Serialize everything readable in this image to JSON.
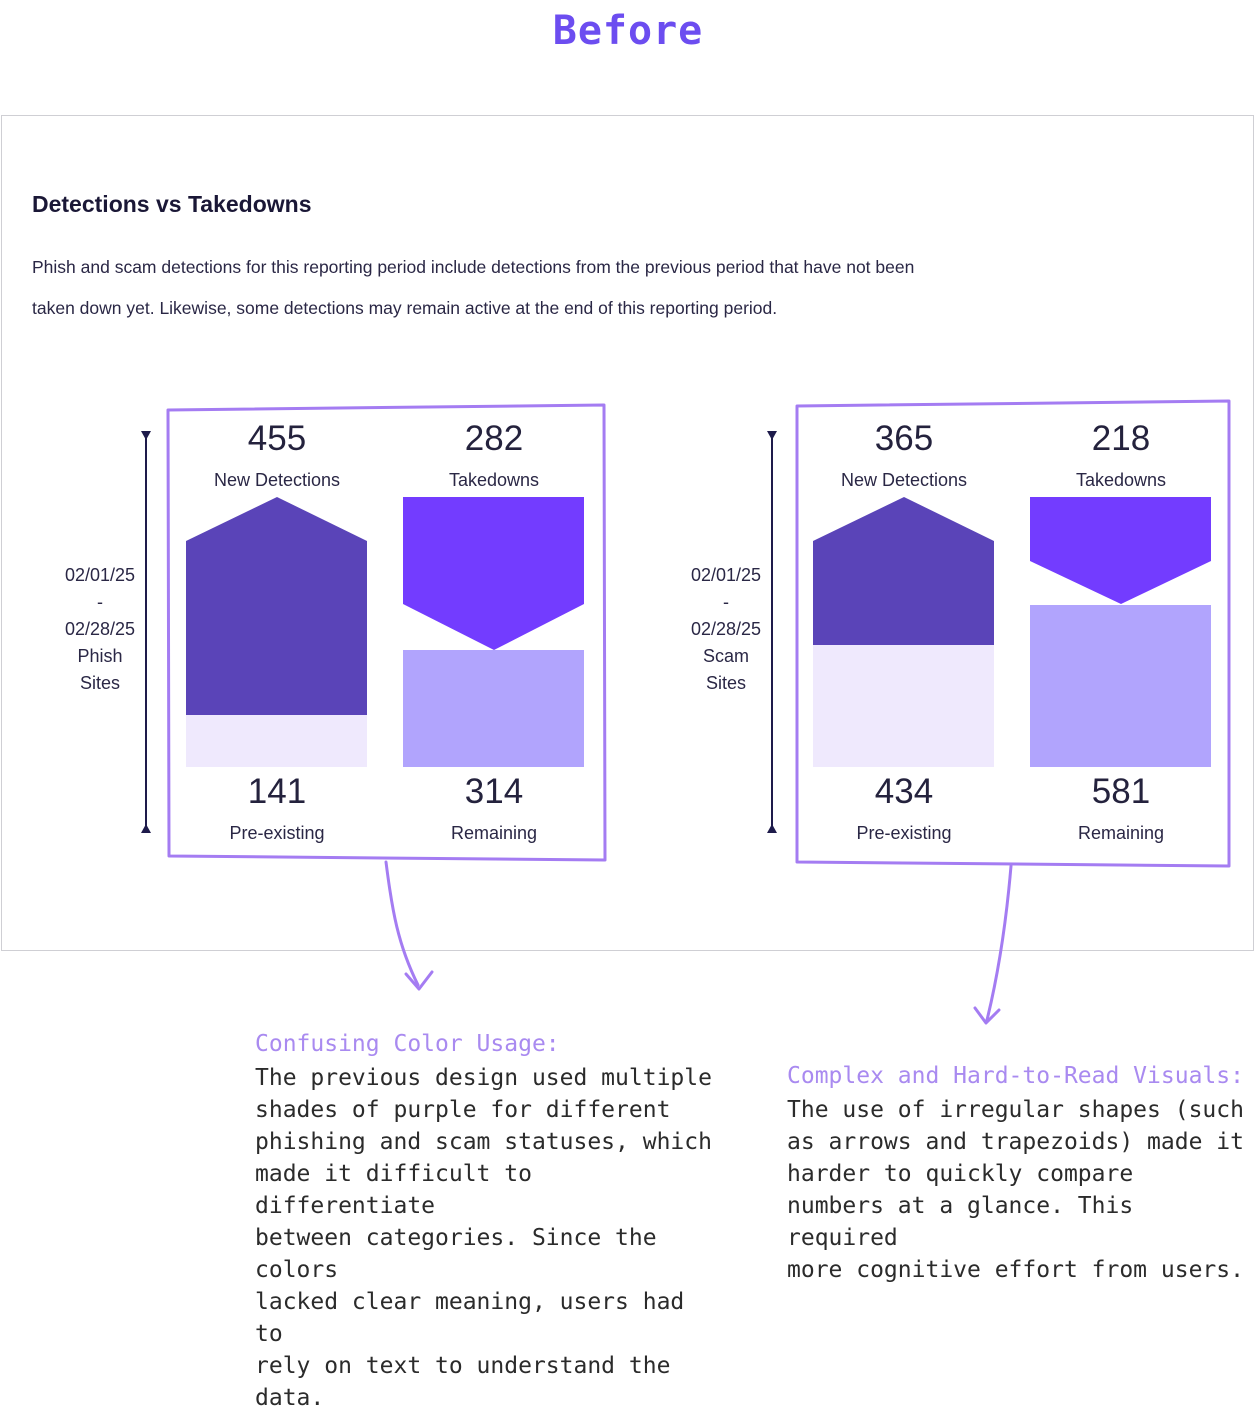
{
  "heading": "Before",
  "card": {
    "title": "Detections vs Takedowns",
    "description": "Phish and scam detections for this reporting period include detections from the previous period that have not been taken down yet. Likewise, some detections may remain active at the end of this reporting period."
  },
  "colors": {
    "accent": "#6c4df0",
    "dark_purple": "#5a44b8",
    "bright_purple": "#733cff",
    "light_purple": "#b1a4fd",
    "pale_purple": "#efe9fd",
    "annotation": "#a98af0"
  },
  "chart_data": [
    {
      "type": "bar",
      "range_label": [
        "02/01/25",
        "-",
        "02/28/25",
        "Phish",
        "Sites"
      ],
      "new_detections": {
        "value": "455",
        "label": "New Detections"
      },
      "takedowns": {
        "value": "282",
        "label": "Takedowns"
      },
      "pre_existing": {
        "value": "141",
        "label": "Pre-existing"
      },
      "remaining": {
        "value": "314",
        "label": "Remaining"
      }
    },
    {
      "type": "bar",
      "range_label": [
        "02/01/25",
        "-",
        "02/28/25",
        "Scam",
        "Sites"
      ],
      "new_detections": {
        "value": "365",
        "label": "New Detections"
      },
      "takedowns": {
        "value": "218",
        "label": "Takedowns"
      },
      "pre_existing": {
        "value": "434",
        "label": "Pre-existing"
      },
      "remaining": {
        "value": "581",
        "label": "Remaining"
      }
    }
  ],
  "annotations": [
    {
      "title": "Confusing Color Usage:",
      "lines": [
        "The previous design used multiple",
        "shades of purple for different",
        "phishing and scam statuses, which",
        "made it difficult to differentiate",
        "between categories. Since the colors",
        "lacked clear meaning, users had to",
        "rely on text to understand the data."
      ]
    },
    {
      "title": "Complex and Hard-to-Read Visuals:",
      "lines": [
        "The use of irregular shapes (such",
        "as arrows and trapezoids) made it",
        "harder to quickly compare",
        "numbers at a glance. This required",
        "more cognitive effort from users."
      ]
    }
  ]
}
